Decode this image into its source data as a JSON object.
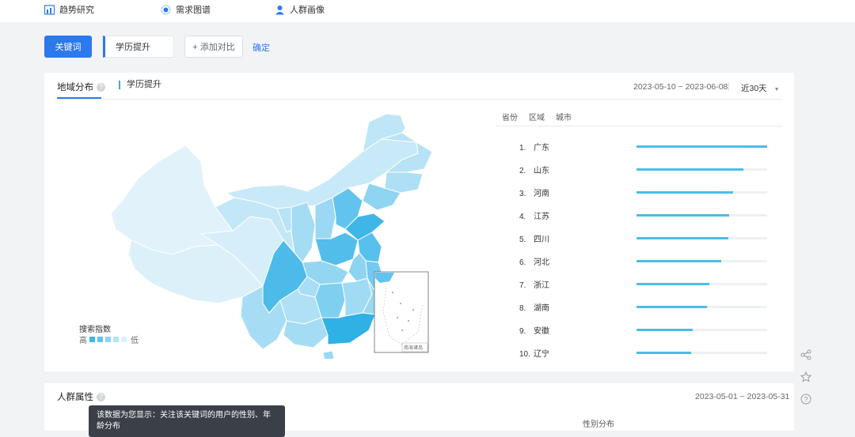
{
  "nav": {
    "items": [
      {
        "label": "趋势研究",
        "icon": "trend-chart-icon"
      },
      {
        "label": "需求图谱",
        "icon": "graph-radio-icon"
      },
      {
        "label": "人群画像",
        "icon": "user-icon"
      }
    ]
  },
  "search": {
    "keyword_label": "关键词",
    "keyword_value": "学历提升",
    "add_compare": "+ 添加对比",
    "confirm": "确定"
  },
  "region": {
    "title": "地域分布",
    "series": "学历提升",
    "date_range": "2023-05-10 ~ 2023-06-08",
    "range_select": "近30天",
    "rank_tabs": [
      "省份",
      "区域",
      "城市"
    ],
    "legend_title": "搜索指数",
    "legend_high": "高",
    "legend_low": "低",
    "legend_colors": [
      "#3fb6e8",
      "#62c4ee",
      "#8dd4f2",
      "#b6e3f6",
      "#dcf1fb"
    ],
    "inset_label": "南海诸岛"
  },
  "chart_data": {
    "type": "bar",
    "categories": [
      "广东",
      "山东",
      "河南",
      "江苏",
      "四川",
      "河北",
      "浙江",
      "湖南",
      "安徽",
      "辽宁"
    ],
    "ranks": [
      "1.",
      "2.",
      "3.",
      "4.",
      "5.",
      "6.",
      "7.",
      "8.",
      "9.",
      "10."
    ],
    "values": [
      100,
      82,
      74,
      71,
      70,
      65,
      56,
      54,
      43,
      42
    ],
    "ylim": [
      0,
      100
    ]
  },
  "crowd": {
    "title": "人群属性",
    "date_range": "2023-05-01 ~ 2023-05-31",
    "gender_title": "性别分布",
    "tooltip": "该数据为您显示：关注该关键词的用户的性别、年龄分布"
  },
  "side": {
    "icons": [
      "share-icon",
      "star-icon",
      "help-icon"
    ]
  }
}
